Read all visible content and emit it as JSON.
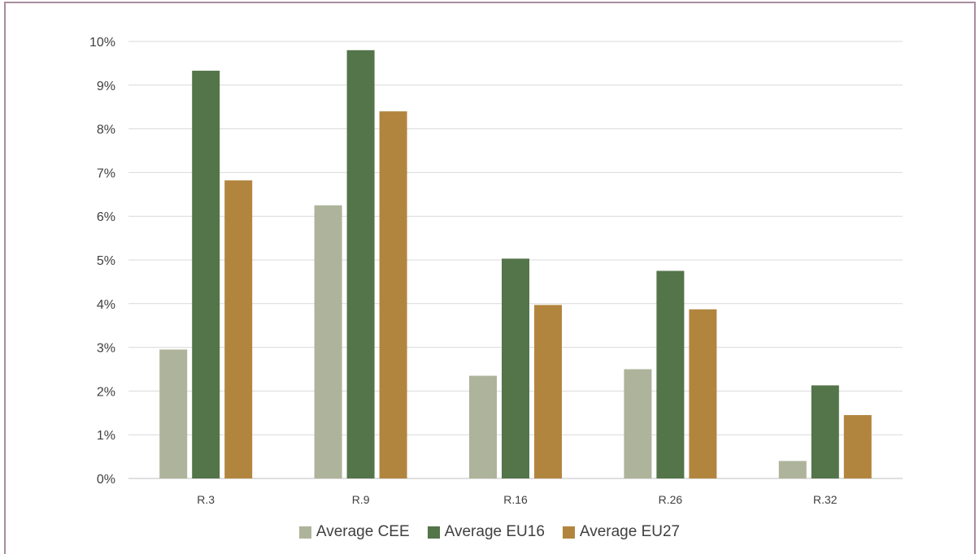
{
  "chart_data": {
    "type": "bar",
    "categories": [
      "R.3",
      "R.9",
      "R.16",
      "R.26",
      "R.32"
    ],
    "series": [
      {
        "name": "Average CEE",
        "color": "#aeb39b",
        "values": [
          2.95,
          6.25,
          2.35,
          2.5,
          0.4
        ]
      },
      {
        "name": "Average EU16",
        "color": "#54744a",
        "values": [
          9.33,
          9.8,
          5.03,
          4.75,
          2.13
        ]
      },
      {
        "name": "Average EU27",
        "color": "#b2853f",
        "values": [
          6.82,
          8.4,
          3.97,
          3.87,
          1.45
        ]
      }
    ],
    "yticks": [
      "0%",
      "1%",
      "2%",
      "3%",
      "4%",
      "5%",
      "6%",
      "7%",
      "8%",
      "9%",
      "10%"
    ],
    "ylim": [
      0,
      10
    ],
    "grid": true,
    "legend": "bottom",
    "title": "",
    "xlabel": "",
    "ylabel": ""
  }
}
